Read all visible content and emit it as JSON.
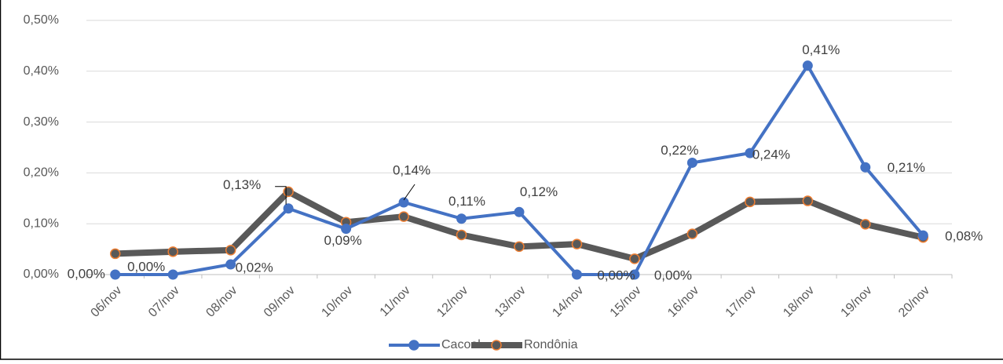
{
  "chart_data": {
    "type": "line",
    "categories": [
      "06/nov",
      "07/nov",
      "08/nov",
      "09/nov",
      "10/nov",
      "11/nov",
      "12/nov",
      "13/nov",
      "14/nov",
      "15/nov",
      "16/nov",
      "17/nov",
      "18/nov",
      "19/nov",
      "20/nov"
    ],
    "series": [
      {
        "name": "Cacoal",
        "color": "#4472c4",
        "values": [
          0,
          0,
          0.02,
          0.13,
          0.09,
          0.142,
          0.11,
          0.123,
          0,
          0,
          0.22,
          0.239,
          0.411,
          0.211,
          0.077
        ],
        "value_labels": [
          "0,00%",
          "0,00%",
          "0,02%",
          "0,13%",
          "0,09%",
          "0,14%",
          "0,11%",
          "0,12%",
          "0,00%",
          "0,00%",
          "0,22%",
          "0,24%",
          "0,41%",
          "0,21%",
          "0,08%"
        ]
      },
      {
        "name": "Rondônia",
        "color": "#595959",
        "marker_edge": "#ed7d31",
        "values": [
          0.041,
          0.045,
          0.048,
          0.163,
          0.103,
          0.114,
          0.078,
          0.055,
          0.06,
          0.031,
          0.08,
          0.143,
          0.145,
          0.099,
          0.073
        ]
      }
    ],
    "ylim": [
      0,
      0.5
    ],
    "yticks": [
      {
        "value": 0,
        "label": "0,00%"
      },
      {
        "value": 0.1,
        "label": "0,10%"
      },
      {
        "value": 0.2,
        "label": "0,20%"
      },
      {
        "value": 0.3,
        "label": "0,30%"
      },
      {
        "value": 0.4,
        "label": "0,40%"
      },
      {
        "value": 0.5,
        "label": "0,50%"
      }
    ],
    "grid": true,
    "legend": "bottom"
  }
}
